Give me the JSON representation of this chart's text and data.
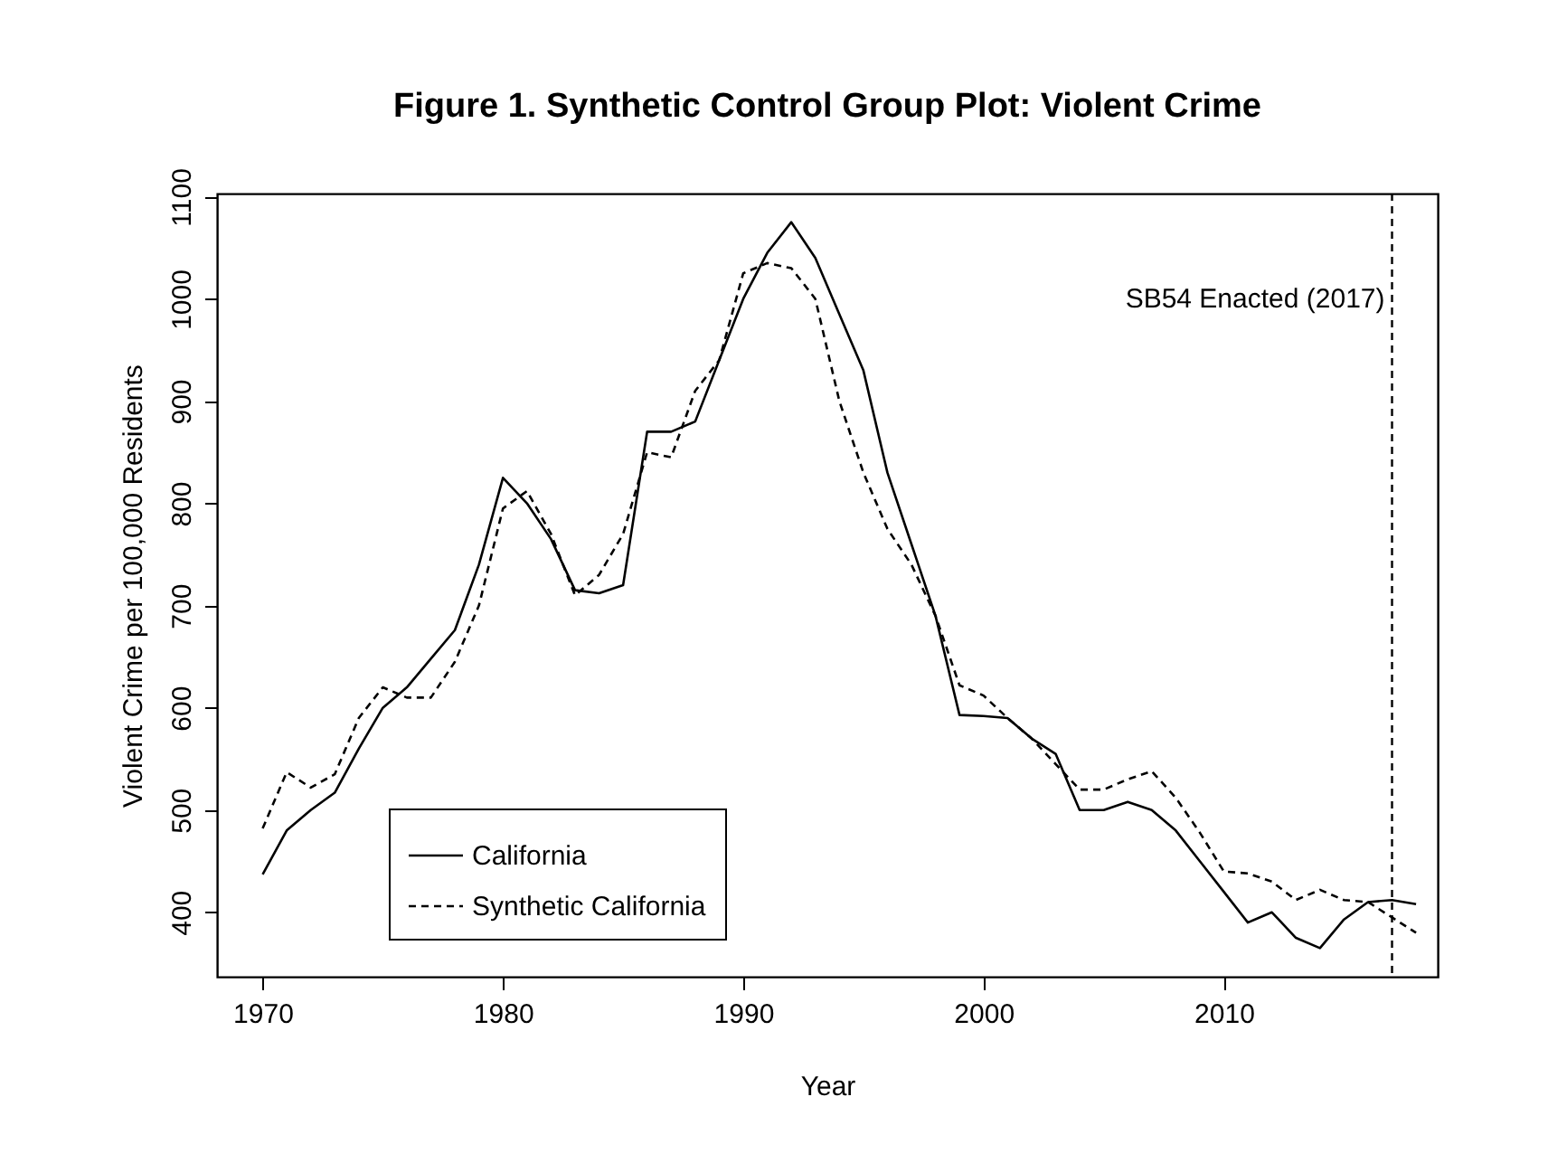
{
  "chart_data": {
    "type": "line",
    "title": "Figure 1. Synthetic Control Group Plot: Violent Crime",
    "xlabel": "Year",
    "ylabel": "Violent Crime per 100,000 Residents",
    "x": [
      1970,
      1971,
      1972,
      1973,
      1974,
      1975,
      1976,
      1977,
      1978,
      1979,
      1980,
      1981,
      1982,
      1983,
      1984,
      1985,
      1986,
      1987,
      1988,
      1989,
      1990,
      1991,
      1992,
      1993,
      1994,
      1995,
      1996,
      1997,
      1998,
      1999,
      2000,
      2001,
      2002,
      2003,
      2004,
      2005,
      2006,
      2007,
      2008,
      2009,
      2010,
      2011,
      2012,
      2013,
      2014,
      2015,
      2016,
      2017,
      2018
    ],
    "series": [
      {
        "name": "California",
        "color": "#000000",
        "line_style": "solid",
        "values": [
          437,
          480,
          500,
          517,
          560,
          600,
          620,
          648,
          676,
          740,
          825,
          800,
          765,
          715,
          712,
          720,
          870,
          870,
          880,
          940,
          1000,
          1045,
          1075,
          1040,
          985,
          930,
          830,
          760,
          690,
          593,
          592,
          590,
          570,
          555,
          500,
          500,
          508,
          500,
          480,
          450,
          420,
          390,
          400,
          375,
          365,
          393,
          410,
          412,
          408
        ]
      },
      {
        "name": "Synthetic California",
        "color": "#000000",
        "line_style": "dashed",
        "values": [
          482,
          537,
          522,
          535,
          590,
          620,
          610,
          610,
          645,
          700,
          795,
          812,
          770,
          710,
          730,
          770,
          850,
          845,
          910,
          940,
          1025,
          1035,
          1030,
          1000,
          900,
          830,
          775,
          740,
          690,
          622,
          612,
          590,
          570,
          545,
          520,
          520,
          530,
          538,
          512,
          478,
          440,
          438,
          430,
          412,
          422,
          412,
          410,
          395,
          380
        ]
      }
    ],
    "xlim": [
      1968.1,
      2018.9
    ],
    "xticks": [
      1970,
      1980,
      1990,
      2000,
      2010
    ],
    "ylim": [
      337,
      1103
    ],
    "yticks": [
      400,
      500,
      600,
      700,
      800,
      900,
      1000,
      1100
    ],
    "ref_lines": [
      {
        "axis": "x",
        "value": 2017,
        "label": "SB54 Enacted (2017)",
        "color": "#000000",
        "line_style": "dashed"
      }
    ],
    "grid": false,
    "legend": "bottom left",
    "marker": "none"
  }
}
